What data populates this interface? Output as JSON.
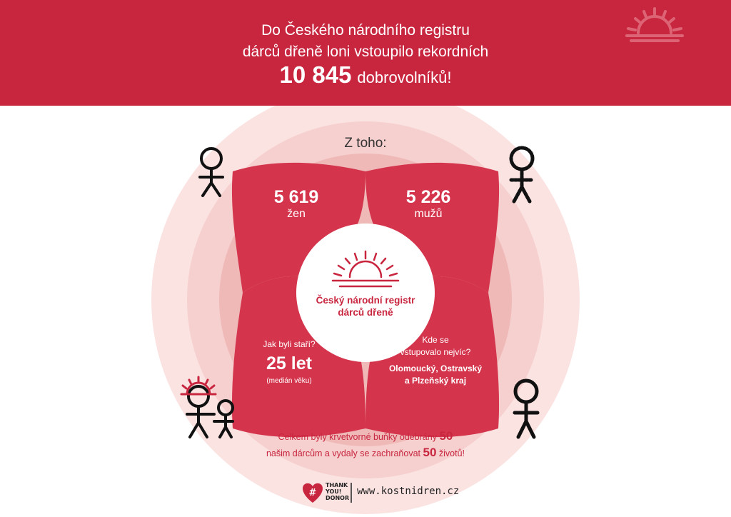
{
  "header": {
    "line1": "Do Českého národního registru",
    "line2": "dárců dřeně loni vstoupilo rekordních",
    "total": "10 845",
    "total_suffix": "dobrovolníků!"
  },
  "intro": "Z toho:",
  "women": {
    "count": "5 619",
    "label": "žen"
  },
  "men": {
    "count": "5 226",
    "label": "mužů"
  },
  "age": {
    "question": "Jak byli staří?",
    "value": "25 let",
    "note": "(medián věku)"
  },
  "region": {
    "question_line1": "Kde se",
    "question_line2": "vstupovalo nejvíc?",
    "answer_line1": "Olomoucký, Ostravský",
    "answer_line2": "a Plzeňský kraj"
  },
  "logo_text": {
    "line1": "Český národní registr",
    "line2": "dárců dřeně"
  },
  "footnote": {
    "part1": "Celkem byly krvetvorné buňky odebrány",
    "num1": "50",
    "part2": "našim dárcům a vydaly se zachraňovat",
    "num2": "50",
    "part3": "životů!"
  },
  "thank_you_logo": {
    "hash": "#",
    "line1": "THANK",
    "line2": "YOU!",
    "line3": "DONOR"
  },
  "website": "www.kostnidren.cz",
  "colors": {
    "brand": "#c8253f",
    "ring_outer": "#fbe3e2",
    "ring_mid": "#f4c9c8",
    "ring_inner": "#efb5b4"
  }
}
